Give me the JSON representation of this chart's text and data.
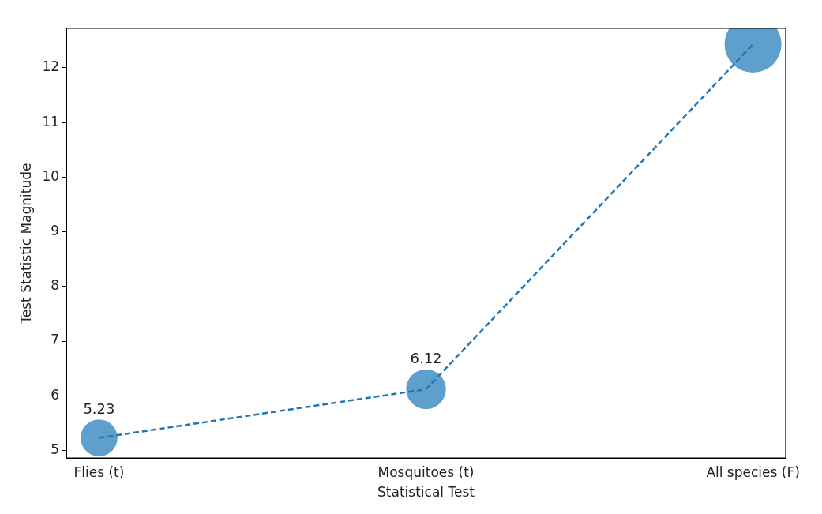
{
  "chart_data": {
    "type": "bubble",
    "xlabel": "Statistical Test",
    "ylabel": "Test Statistic Magnitude",
    "categories": [
      "Flies (t)",
      "Mosquitoes (t)",
      "All species (F)"
    ],
    "ylim": [
      4.86,
      12.72
    ],
    "yticks": [
      5,
      6,
      7,
      8,
      9,
      10,
      11,
      12
    ],
    "series": [
      {
        "type": "line",
        "color": "#1f77b4",
        "values": [
          5.23,
          6.12,
          12.43
        ],
        "line_style": "dashed",
        "marker": "none"
      },
      {
        "color": "#5f9fcb",
        "values": [
          5.23,
          6.12,
          12.43
        ],
        "sizes": [
          0.42,
          0.49,
          1
        ],
        "value_labels": [
          "5.23",
          "6.12",
          null
        ]
      }
    ]
  }
}
